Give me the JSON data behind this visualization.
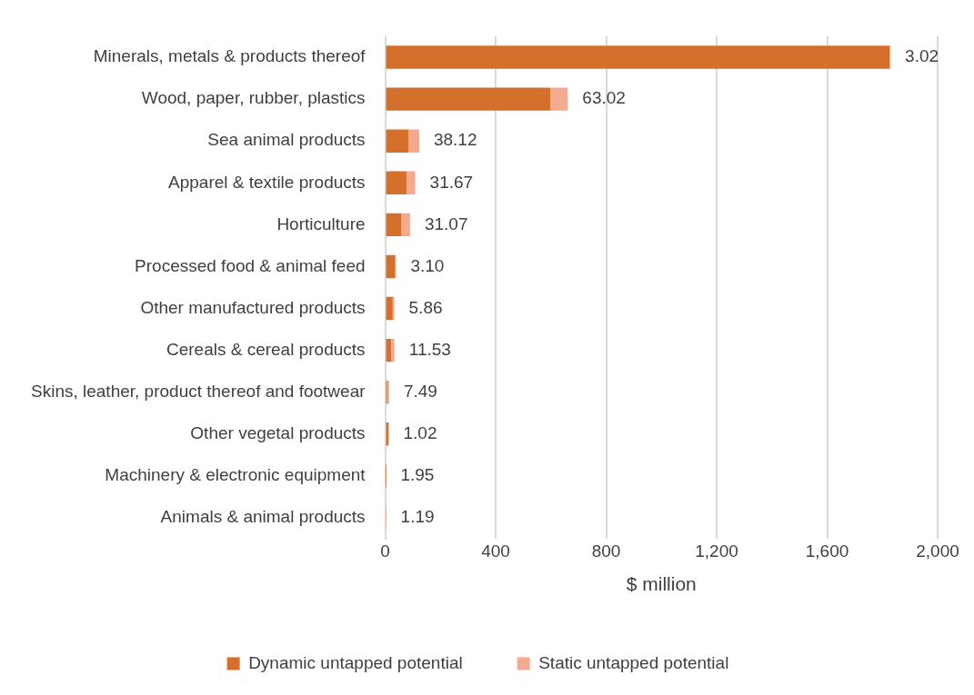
{
  "chart_data": {
    "type": "bar",
    "orientation": "horizontal",
    "stacked": true,
    "categories": [
      "Minerals, metals & products thereof",
      "Wood, paper, rubber, plastics",
      "Sea animal products",
      "Apparel & textile products",
      "Horticulture",
      "Processed food & animal feed",
      "Other manufactured products",
      "Cereals & cereal products",
      "Skins, leather, product thereof and footwear",
      "Other vegetal products",
      "Machinery & electronic equipment",
      "Animals & animal products"
    ],
    "series": [
      {
        "name": "Dynamic untapped potential",
        "color": "#d46f2c",
        "values": [
          1826,
          598,
          85,
          77,
          59,
          36,
          27,
          22,
          7,
          12,
          1,
          0
        ]
      },
      {
        "name": "Static untapped potential",
        "color": "#f4aa8f",
        "values": [
          3.02,
          63.02,
          38.12,
          31.67,
          31.07,
          3.1,
          5.86,
          11.53,
          7.49,
          1.02,
          1.95,
          1.19
        ],
        "value_labels": [
          "3.02",
          "63.02",
          "38.12",
          "31.67",
          "31.07",
          "3.10",
          "5.86",
          "11.53",
          "7.49",
          "1.02",
          "1.95",
          "1.19"
        ]
      }
    ],
    "xlabel": "$ million",
    "xlim": [
      0,
      2000
    ],
    "xticks": [
      0,
      400,
      800,
      {
        "value": 1200,
        "label": "1,200"
      },
      {
        "value": 1600,
        "label": "1,600"
      },
      {
        "value": 2000,
        "label": "2,000"
      }
    ],
    "grid": "x",
    "legend": "bottom"
  }
}
